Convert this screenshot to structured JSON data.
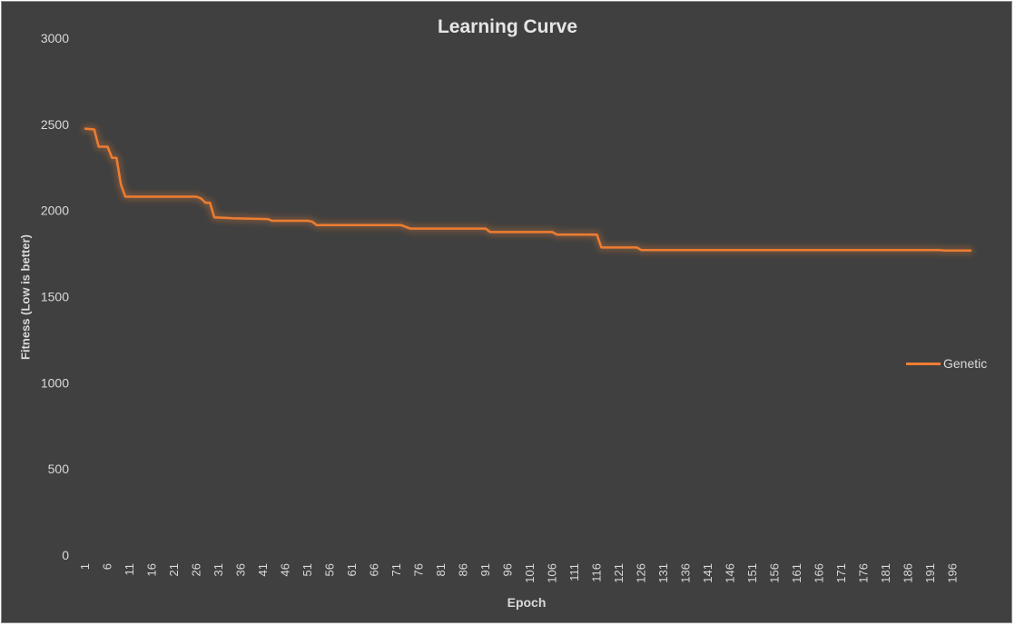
{
  "chart_data": {
    "type": "line",
    "title": "Learning Curve",
    "xlabel": "Epoch",
    "ylabel": "Fitness (Low is better)",
    "ylim": [
      0,
      3000
    ],
    "yticks": [
      0,
      500,
      1000,
      1500,
      2000,
      2500,
      3000
    ],
    "xlim": [
      1,
      200
    ],
    "xtick_labels": [
      "1",
      "6",
      "11",
      "16",
      "21",
      "26",
      "31",
      "36",
      "41",
      "46",
      "51",
      "56",
      "61",
      "66",
      "71",
      "76",
      "81",
      "86",
      "91",
      "96",
      "101",
      "106",
      "111",
      "116",
      "121",
      "126",
      "131",
      "136",
      "141",
      "146",
      "151",
      "156",
      "161",
      "166",
      "171",
      "176",
      "181",
      "186",
      "191",
      "196"
    ],
    "grid": false,
    "legend_position": "right",
    "series": [
      {
        "name": "Genetic",
        "color": "#ed7d31",
        "points": [
          [
            1,
            2475
          ],
          [
            3,
            2470
          ],
          [
            4,
            2370
          ],
          [
            6,
            2370
          ],
          [
            7,
            2305
          ],
          [
            8,
            2305
          ],
          [
            9,
            2150
          ],
          [
            10,
            2080
          ],
          [
            26,
            2080
          ],
          [
            27,
            2070
          ],
          [
            28,
            2045
          ],
          [
            29,
            2045
          ],
          [
            30,
            1960
          ],
          [
            34,
            1955
          ],
          [
            42,
            1950
          ],
          [
            43,
            1940
          ],
          [
            51,
            1940
          ],
          [
            52,
            1935
          ],
          [
            53,
            1915
          ],
          [
            72,
            1915
          ],
          [
            74,
            1895
          ],
          [
            91,
            1895
          ],
          [
            92,
            1875
          ],
          [
            106,
            1875
          ],
          [
            107,
            1860
          ],
          [
            116,
            1860
          ],
          [
            117,
            1785
          ],
          [
            125,
            1785
          ],
          [
            126,
            1770
          ],
          [
            193,
            1770
          ],
          [
            194,
            1768
          ],
          [
            200,
            1768
          ]
        ]
      }
    ]
  }
}
